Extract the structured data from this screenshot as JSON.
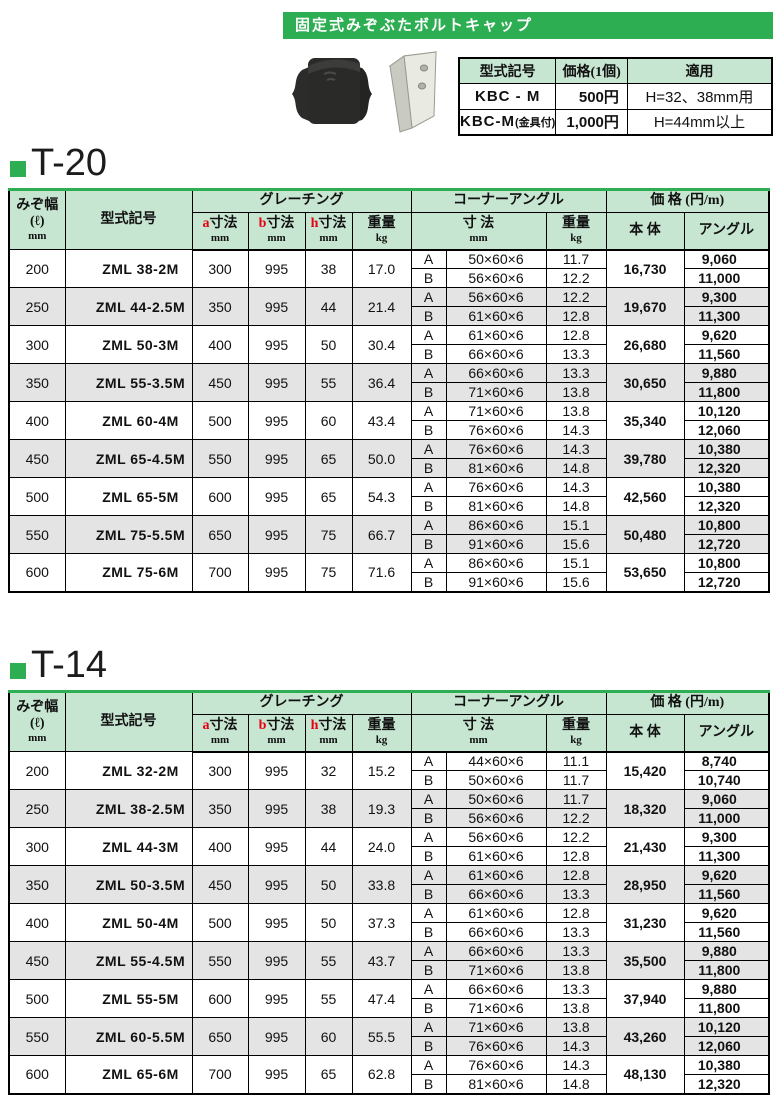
{
  "banner": {
    "title": "固定式みぞぶたボルトキャップ"
  },
  "cap_table": {
    "headers": [
      "型式記号",
      "価格(1個)",
      "適用"
    ],
    "rows": [
      {
        "model": "KBC - M",
        "model_note": "",
        "price": "500円",
        "application": "H=32、38mm用"
      },
      {
        "model": "KBC-M",
        "model_note": "(金具付)",
        "price": "1,000円",
        "application": "H=44mm以上"
      }
    ]
  },
  "labels": {
    "groove_w1": "みぞ幅",
    "groove_w2": "(ℓ)",
    "groove_w3": "mm",
    "model": "型式記号",
    "grating": "グレーチング",
    "a": "a",
    "b": "b",
    "h": "h",
    "dim_word": "寸法",
    "mm": "mm",
    "weight": "重量",
    "kg": "kg",
    "corner": "コーナーアングル",
    "dim2": "寸 法",
    "price_header": "価 格 (円/m)",
    "body": "本 体",
    "angle": "アングル"
  },
  "sections": [
    {
      "title": "T-20",
      "rows": [
        {
          "groove": "200",
          "model": "ZML 38-2M",
          "a": "300",
          "b": "995",
          "h": "38",
          "weight": "17.0",
          "body_price": "16,730",
          "sub": [
            {
              "label": "A",
              "dim": "50×60×6",
              "weight": "11.7",
              "angle_price": "9,060"
            },
            {
              "label": "B",
              "dim": "56×60×6",
              "weight": "12.2",
              "angle_price": "11,000"
            }
          ]
        },
        {
          "groove": "250",
          "model": "ZML 44-2.5M",
          "a": "350",
          "b": "995",
          "h": "44",
          "weight": "21.4",
          "body_price": "19,670",
          "sub": [
            {
              "label": "A",
              "dim": "56×60×6",
              "weight": "12.2",
              "angle_price": "9,300"
            },
            {
              "label": "B",
              "dim": "61×60×6",
              "weight": "12.8",
              "angle_price": "11,300"
            }
          ]
        },
        {
          "groove": "300",
          "model": "ZML 50-3M",
          "a": "400",
          "b": "995",
          "h": "50",
          "weight": "30.4",
          "body_price": "26,680",
          "sub": [
            {
              "label": "A",
              "dim": "61×60×6",
              "weight": "12.8",
              "angle_price": "9,620"
            },
            {
              "label": "B",
              "dim": "66×60×6",
              "weight": "13.3",
              "angle_price": "11,560"
            }
          ]
        },
        {
          "groove": "350",
          "model": "ZML 55-3.5M",
          "a": "450",
          "b": "995",
          "h": "55",
          "weight": "36.4",
          "body_price": "30,650",
          "sub": [
            {
              "label": "A",
              "dim": "66×60×6",
              "weight": "13.3",
              "angle_price": "9,880"
            },
            {
              "label": "B",
              "dim": "71×60×6",
              "weight": "13.8",
              "angle_price": "11,800"
            }
          ]
        },
        {
          "groove": "400",
          "model": "ZML 60-4M",
          "a": "500",
          "b": "995",
          "h": "60",
          "weight": "43.4",
          "body_price": "35,340",
          "sub": [
            {
              "label": "A",
              "dim": "71×60×6",
              "weight": "13.8",
              "angle_price": "10,120"
            },
            {
              "label": "B",
              "dim": "76×60×6",
              "weight": "14.3",
              "angle_price": "12,060"
            }
          ]
        },
        {
          "groove": "450",
          "model": "ZML 65-4.5M",
          "a": "550",
          "b": "995",
          "h": "65",
          "weight": "50.0",
          "body_price": "39,780",
          "sub": [
            {
              "label": "A",
              "dim": "76×60×6",
              "weight": "14.3",
              "angle_price": "10,380"
            },
            {
              "label": "B",
              "dim": "81×60×6",
              "weight": "14.8",
              "angle_price": "12,320"
            }
          ]
        },
        {
          "groove": "500",
          "model": "ZML 65-5M",
          "a": "600",
          "b": "995",
          "h": "65",
          "weight": "54.3",
          "body_price": "42,560",
          "sub": [
            {
              "label": "A",
              "dim": "76×60×6",
              "weight": "14.3",
              "angle_price": "10,380"
            },
            {
              "label": "B",
              "dim": "81×60×6",
              "weight": "14.8",
              "angle_price": "12,320"
            }
          ]
        },
        {
          "groove": "550",
          "model": "ZML 75-5.5M",
          "a": "650",
          "b": "995",
          "h": "75",
          "weight": "66.7",
          "body_price": "50,480",
          "sub": [
            {
              "label": "A",
              "dim": "86×60×6",
              "weight": "15.1",
              "angle_price": "10,800"
            },
            {
              "label": "B",
              "dim": "91×60×6",
              "weight": "15.6",
              "angle_price": "12,720"
            }
          ]
        },
        {
          "groove": "600",
          "model": "ZML 75-6M",
          "a": "700",
          "b": "995",
          "h": "75",
          "weight": "71.6",
          "body_price": "53,650",
          "sub": [
            {
              "label": "A",
              "dim": "86×60×6",
              "weight": "15.1",
              "angle_price": "10,800"
            },
            {
              "label": "B",
              "dim": "91×60×6",
              "weight": "15.6",
              "angle_price": "12,720"
            }
          ]
        }
      ]
    },
    {
      "title": "T-14",
      "rows": [
        {
          "groove": "200",
          "model": "ZML 32-2M",
          "a": "300",
          "b": "995",
          "h": "32",
          "weight": "15.2",
          "body_price": "15,420",
          "sub": [
            {
              "label": "A",
              "dim": "44×60×6",
              "weight": "11.1",
              "angle_price": "8,740"
            },
            {
              "label": "B",
              "dim": "50×60×6",
              "weight": "11.7",
              "angle_price": "10,740"
            }
          ]
        },
        {
          "groove": "250",
          "model": "ZML 38-2.5M",
          "a": "350",
          "b": "995",
          "h": "38",
          "weight": "19.3",
          "body_price": "18,320",
          "sub": [
            {
              "label": "A",
              "dim": "50×60×6",
              "weight": "11.7",
              "angle_price": "9,060"
            },
            {
              "label": "B",
              "dim": "56×60×6",
              "weight": "12.2",
              "angle_price": "11,000"
            }
          ]
        },
        {
          "groove": "300",
          "model": "ZML 44-3M",
          "a": "400",
          "b": "995",
          "h": "44",
          "weight": "24.0",
          "body_price": "21,430",
          "sub": [
            {
              "label": "A",
              "dim": "56×60×6",
              "weight": "12.2",
              "angle_price": "9,300"
            },
            {
              "label": "B",
              "dim": "61×60×6",
              "weight": "12.8",
              "angle_price": "11,300"
            }
          ]
        },
        {
          "groove": "350",
          "model": "ZML 50-3.5M",
          "a": "450",
          "b": "995",
          "h": "50",
          "weight": "33.8",
          "body_price": "28,950",
          "sub": [
            {
              "label": "A",
              "dim": "61×60×6",
              "weight": "12.8",
              "angle_price": "9,620"
            },
            {
              "label": "B",
              "dim": "66×60×6",
              "weight": "13.3",
              "angle_price": "11,560"
            }
          ]
        },
        {
          "groove": "400",
          "model": "ZML 50-4M",
          "a": "500",
          "b": "995",
          "h": "50",
          "weight": "37.3",
          "body_price": "31,230",
          "sub": [
            {
              "label": "A",
              "dim": "61×60×6",
              "weight": "12.8",
              "angle_price": "9,620"
            },
            {
              "label": "B",
              "dim": "66×60×6",
              "weight": "13.3",
              "angle_price": "11,560"
            }
          ]
        },
        {
          "groove": "450",
          "model": "ZML 55-4.5M",
          "a": "550",
          "b": "995",
          "h": "55",
          "weight": "43.7",
          "body_price": "35,500",
          "sub": [
            {
              "label": "A",
              "dim": "66×60×6",
              "weight": "13.3",
              "angle_price": "9,880"
            },
            {
              "label": "B",
              "dim": "71×60×6",
              "weight": "13.8",
              "angle_price": "11,800"
            }
          ]
        },
        {
          "groove": "500",
          "model": "ZML 55-5M",
          "a": "600",
          "b": "995",
          "h": "55",
          "weight": "47.4",
          "body_price": "37,940",
          "sub": [
            {
              "label": "A",
              "dim": "66×60×6",
              "weight": "13.3",
              "angle_price": "9,880"
            },
            {
              "label": "B",
              "dim": "71×60×6",
              "weight": "13.8",
              "angle_price": "11,800"
            }
          ]
        },
        {
          "groove": "550",
          "model": "ZML 60-5.5M",
          "a": "650",
          "b": "995",
          "h": "60",
          "weight": "55.5",
          "body_price": "43,260",
          "sub": [
            {
              "label": "A",
              "dim": "71×60×6",
              "weight": "13.8",
              "angle_price": "10,120"
            },
            {
              "label": "B",
              "dim": "76×60×6",
              "weight": "14.3",
              "angle_price": "12,060"
            }
          ]
        },
        {
          "groove": "600",
          "model": "ZML 65-6M",
          "a": "700",
          "b": "995",
          "h": "65",
          "weight": "62.8",
          "body_price": "48,130",
          "sub": [
            {
              "label": "A",
              "dim": "76×60×6",
              "weight": "14.3",
              "angle_price": "10,380"
            },
            {
              "label": "B",
              "dim": "81×60×6",
              "weight": "14.8",
              "angle_price": "12,320"
            }
          ]
        }
      ]
    }
  ]
}
